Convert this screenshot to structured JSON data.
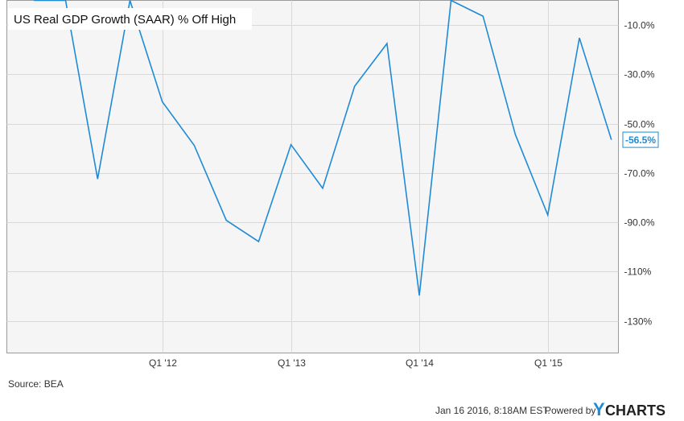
{
  "chart_data": {
    "type": "line",
    "title": "US Real GDP Growth (SAAR) % Off High",
    "xlabel": "",
    "ylabel": "",
    "x_ticks": [
      "Q1 '12",
      "Q1 '13",
      "Q1 '14",
      "Q1 '15"
    ],
    "y_ticks": [
      "-10.0%",
      "-30.0%",
      "-50.0%",
      "-70.0%",
      "-90.0%",
      "-110%",
      "-130%"
    ],
    "ylim": [
      -143,
      0
    ],
    "grid": true,
    "series": [
      {
        "color": "#1f8bd6",
        "points": [
          {
            "x": "2010-12-31",
            "y": 0.0
          },
          {
            "x": "2011-03-31",
            "y": 0.0
          },
          {
            "x": "2011-06-30",
            "y": -72.4
          },
          {
            "x": "2011-09-30",
            "y": 0.0
          },
          {
            "x": "2011-12-31",
            "y": -41.1
          },
          {
            "x": "2012-03-31",
            "y": -58.8
          },
          {
            "x": "2012-06-30",
            "y": -89.2
          },
          {
            "x": "2012-09-30",
            "y": -97.8
          },
          {
            "x": "2012-12-31",
            "y": -58.5
          },
          {
            "x": "2013-03-31",
            "y": -76.2
          },
          {
            "x": "2013-06-30",
            "y": -34.8
          },
          {
            "x": "2013-09-30",
            "y": -17.5
          },
          {
            "x": "2013-12-31",
            "y": -119.7
          },
          {
            "x": "2014-03-31",
            "y": 0.0
          },
          {
            "x": "2014-06-30",
            "y": -6.4
          },
          {
            "x": "2014-09-30",
            "y": -54.4
          },
          {
            "x": "2014-12-31",
            "y": -87.0
          },
          {
            "x": "2015-03-31",
            "y": -15.2
          },
          {
            "x": "2015-06-30",
            "y": -56.5
          }
        ]
      }
    ],
    "last_value_label": "-56.5%"
  },
  "source": "Source: BEA",
  "footer": {
    "timestamp": "Jan 16 2016, 8:18AM EST.",
    "powered_by": "Powered by",
    "brand_first": "Y",
    "brand_rest": "CHARTS"
  },
  "colors": {
    "line": "#1f8bd6",
    "brand_accent": "#1f8bd6"
  }
}
